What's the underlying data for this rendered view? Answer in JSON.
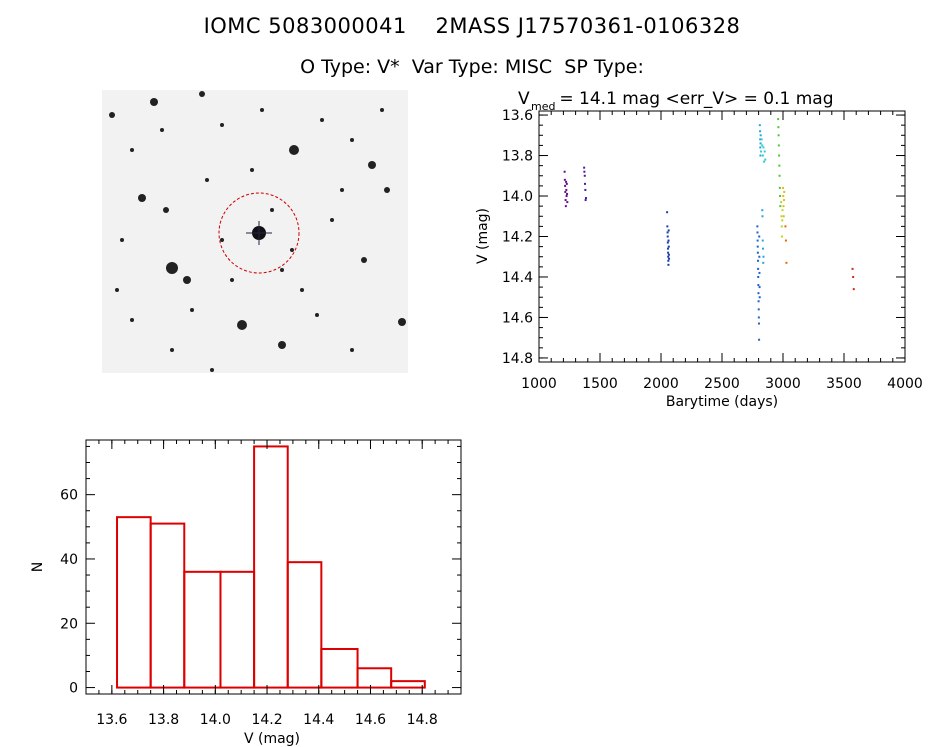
{
  "header": {
    "title_line1": "IOMC 5083000041    2MASS J17570361-0106328",
    "title_line2": "O Type: V*  Var Type: MISC  SP Type:"
  },
  "thumbnail": {
    "type": "sky-image",
    "target_circle_color": "#cc0000"
  },
  "chart_data": [
    {
      "type": "scatter",
      "title_main": "V",
      "title_sub": "med",
      "title_rest": " = 14.1 mag <err_V> = 0.1 mag",
      "xlabel": "Barytime (days)",
      "ylabel": "V (mag)",
      "xlim": [
        1000,
        4000
      ],
      "ylim": [
        14.82,
        13.58
      ],
      "y_inverted": true,
      "xticks": [
        1000,
        1500,
        2000,
        2500,
        3000,
        3500,
        4000
      ],
      "yticks": [
        "13.6",
        "13.8",
        "14.0",
        "14.2",
        "14.4",
        "14.6",
        "14.8"
      ],
      "yticks_values": [
        13.6,
        13.8,
        14.0,
        14.2,
        14.4,
        14.6,
        14.8
      ],
      "series": [
        {
          "color": "#6a0d91",
          "points": [
            [
              1210,
              13.88
            ],
            [
              1212,
              13.92
            ],
            [
              1214,
              13.95
            ],
            [
              1216,
              13.98
            ],
            [
              1218,
              14.02
            ],
            [
              1220,
              14.05
            ],
            [
              1222,
              13.93
            ],
            [
              1224,
              13.97
            ],
            [
              1226,
              14.0
            ],
            [
              1228,
              13.94
            ],
            [
              1230,
              13.99
            ],
            [
              1232,
              14.03
            ]
          ]
        },
        {
          "color": "#4b1aa0",
          "points": [
            [
              1370,
              13.86
            ],
            [
              1372,
              13.88
            ],
            [
              1375,
              13.9
            ],
            [
              1377,
              13.94
            ],
            [
              1380,
              13.97
            ],
            [
              1382,
              14.02
            ],
            [
              1385,
              14.01
            ]
          ]
        },
        {
          "color": "#1f3fa8",
          "points": [
            [
              2050,
              14.08
            ],
            [
              2052,
              14.15
            ],
            [
              2054,
              14.18
            ],
            [
              2055,
              14.2
            ],
            [
              2056,
              14.23
            ],
            [
              2057,
              14.26
            ],
            [
              2058,
              14.28
            ],
            [
              2059,
              14.3
            ],
            [
              2060,
              14.32
            ],
            [
              2061,
              14.34
            ],
            [
              2062,
              14.22
            ],
            [
              2063,
              14.17
            ],
            [
              2064,
              14.25
            ],
            [
              2065,
              14.29
            ],
            [
              2066,
              14.31
            ]
          ]
        },
        {
          "color": "#1a66c8",
          "points": [
            [
              2790,
              14.15
            ],
            [
              2791,
              14.18
            ],
            [
              2792,
              14.22
            ],
            [
              2793,
              14.25
            ],
            [
              2794,
              14.28
            ],
            [
              2795,
              14.32
            ],
            [
              2796,
              14.36
            ],
            [
              2797,
              14.4
            ],
            [
              2798,
              14.44
            ],
            [
              2799,
              14.48
            ],
            [
              2800,
              14.52
            ],
            [
              2801,
              14.56
            ],
            [
              2802,
              14.6
            ],
            [
              2803,
              14.63
            ],
            [
              2804,
              14.71
            ],
            [
              2805,
              14.2
            ],
            [
              2806,
              14.3
            ],
            [
              2807,
              14.38
            ],
            [
              2808,
              14.45
            ],
            [
              2809,
              14.5
            ]
          ]
        },
        {
          "color": "#20a8e0",
          "points": [
            [
              2810,
              13.65
            ],
            [
              2812,
              13.68
            ],
            [
              2813,
              13.72
            ],
            [
              2814,
              13.76
            ],
            [
              2815,
              13.8
            ],
            [
              2816,
              13.74
            ],
            [
              2817,
              13.7
            ],
            [
              2830,
              14.07
            ],
            [
              2832,
              14.1
            ],
            [
              2834,
              14.22
            ],
            [
              2836,
              14.26
            ],
            [
              2838,
              14.33
            ],
            [
              2840,
              14.3
            ]
          ]
        },
        {
          "color": "#30d0c8",
          "points": [
            [
              2820,
              13.78
            ],
            [
              2825,
              13.72
            ],
            [
              2830,
              13.75
            ],
            [
              2835,
              13.8
            ],
            [
              2840,
              13.76
            ],
            [
              2845,
              13.83
            ],
            [
              2850,
              13.78
            ],
            [
              2855,
              13.82
            ]
          ]
        },
        {
          "color": "#4ec832",
          "points": [
            [
              2960,
              13.62
            ],
            [
              2962,
              13.66
            ],
            [
              2964,
              13.7
            ],
            [
              2966,
              13.75
            ],
            [
              2968,
              13.8
            ],
            [
              2970,
              13.85
            ],
            [
              2972,
              13.9
            ],
            [
              2974,
              13.96
            ],
            [
              2976,
              14.0
            ],
            [
              2978,
              14.05
            ]
          ]
        },
        {
          "color": "#b8d820",
          "points": [
            [
              2985,
              14.03
            ],
            [
              2988,
              14.1
            ],
            [
              2990,
              14.15
            ],
            [
              2992,
              14.2
            ],
            [
              2994,
              14.12
            ],
            [
              2996,
              14.07
            ]
          ]
        },
        {
          "color": "#e8b818",
          "points": [
            [
              3000,
              13.96
            ],
            [
              3002,
              14.0
            ],
            [
              3004,
              14.05
            ],
            [
              3006,
              14.1
            ],
            [
              3008,
              14.02
            ],
            [
              3010,
              13.98
            ]
          ]
        },
        {
          "color": "#e06a10",
          "points": [
            [
              3020,
              14.15
            ],
            [
              3024,
              14.22
            ],
            [
              3028,
              14.33
            ]
          ]
        },
        {
          "color": "#d02a10",
          "points": [
            [
              3570,
              14.36
            ],
            [
              3575,
              14.4
            ],
            [
              3580,
              14.46
            ]
          ]
        }
      ]
    },
    {
      "type": "bar",
      "histogram": true,
      "xlabel": "V (mag)",
      "ylabel": "N",
      "xlim": [
        13.5,
        14.95
      ],
      "ylim": [
        -2,
        77
      ],
      "xticks": [
        "13.6",
        "13.8",
        "14.0",
        "14.2",
        "14.4",
        "14.6",
        "14.8"
      ],
      "xticks_values": [
        13.6,
        13.8,
        14.0,
        14.2,
        14.4,
        14.6,
        14.8
      ],
      "yticks": [
        "0",
        "20",
        "40",
        "60"
      ],
      "yticks_values": [
        0,
        20,
        40,
        60
      ],
      "bar_color": "#dd0000",
      "bins": [
        {
          "from": 13.62,
          "to": 13.75,
          "value": 53
        },
        {
          "from": 13.75,
          "to": 13.88,
          "value": 51
        },
        {
          "from": 13.88,
          "to": 14.02,
          "value": 36
        },
        {
          "from": 14.02,
          "to": 14.15,
          "value": 36
        },
        {
          "from": 14.15,
          "to": 14.28,
          "value": 75
        },
        {
          "from": 14.28,
          "to": 14.41,
          "value": 39
        },
        {
          "from": 14.41,
          "to": 14.55,
          "value": 12
        },
        {
          "from": 14.55,
          "to": 14.68,
          "value": 6
        },
        {
          "from": 14.68,
          "to": 14.81,
          "value": 2
        }
      ]
    }
  ]
}
